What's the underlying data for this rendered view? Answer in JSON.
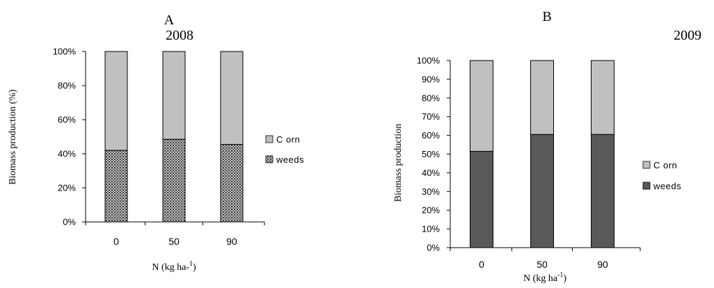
{
  "chart_data": [
    {
      "type": "bar",
      "stacked": true,
      "panel_label": "A",
      "year": "2008",
      "categories": [
        "0",
        "50",
        "90"
      ],
      "series": [
        {
          "name": "weeds",
          "values": [
            42,
            48.5,
            45.5
          ],
          "color": "#7a7a7a",
          "pattern": "crosshatch"
        },
        {
          "name": "C orn",
          "values": [
            58,
            51.5,
            54.5
          ],
          "color": "#c0c0c0"
        }
      ],
      "ylabel": "Biomass production (%)",
      "xlabel": "N (kg ha-1)",
      "ylim": [
        0,
        100
      ],
      "yticks": [
        "0%",
        "20%",
        "40%",
        "60%",
        "80%",
        "100%"
      ],
      "legend": "right",
      "grid": false
    },
    {
      "type": "bar",
      "stacked": true,
      "panel_label": "B",
      "year": "2009",
      "categories": [
        "0",
        "50",
        "90"
      ],
      "series": [
        {
          "name": "weeds",
          "values": [
            51.5,
            60.5,
            60.5
          ],
          "color": "#595959"
        },
        {
          "name": "C orn",
          "values": [
            48.5,
            39.5,
            39.5
          ],
          "color": "#c0c0c0"
        }
      ],
      "ylabel": "Biomass production",
      "xlabel": "N (kg ha-1)",
      "ylim": [
        0,
        100
      ],
      "yticks": [
        "0%",
        "10%",
        "20%",
        "30%",
        "40%",
        "50%",
        "60%",
        "70%",
        "80%",
        "90%",
        "100%"
      ],
      "legend": "right",
      "grid": false
    }
  ]
}
